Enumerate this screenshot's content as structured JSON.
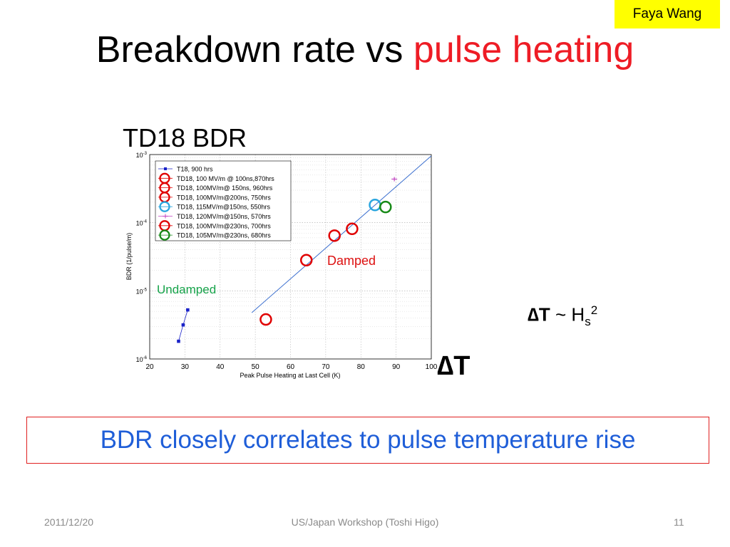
{
  "header": {
    "author": "Faya Wang",
    "title_prefix": "Breakdown rate vs ",
    "title_highlight": "pulse heating"
  },
  "chart_heading": "TD18 BDR",
  "equation": {
    "lhs": "∆T",
    "op": " ~ H",
    "sub": "s",
    "sup": "2"
  },
  "delta_t_label": "∆T",
  "conclusion": "BDR closely correlates to pulse temperature rise",
  "footer": {
    "date": "2011/12/20",
    "center": "US/Japan Workshop (Toshi Higo)",
    "page": "11"
  },
  "chart_data": {
    "type": "scatter",
    "xlabel": "Peak Pulse Heating at Last Cell (K)",
    "ylabel": "BDR (1/pulse/m)",
    "xlim": [
      20,
      100
    ],
    "ylim_log10": [
      -6,
      -3
    ],
    "yscale": "log",
    "grid": true,
    "legend_position": "top-left",
    "x_ticks": [
      "20",
      "30",
      "40",
      "50",
      "60",
      "70",
      "80",
      "90",
      "100"
    ],
    "y_ticks": [
      {
        "exp": -6,
        "base": "10",
        "power": "-6"
      },
      {
        "exp": -5,
        "base": "10",
        "power": "-5"
      },
      {
        "exp": -4,
        "base": "10",
        "power": "-4"
      },
      {
        "exp": -3,
        "base": "10",
        "power": "-3"
      }
    ],
    "annotations": [
      {
        "text": "Undamped",
        "color": "#16a34a"
      },
      {
        "text": "Damped",
        "color": "#dd1111"
      }
    ],
    "fit_line": {
      "x": [
        49,
        100
      ],
      "log10_y": [
        -5.32,
        -3.02
      ],
      "color": "#3b6fcf"
    },
    "series": [
      {
        "name": "T18, 900 hrs",
        "color": "#1a22c8",
        "marker": "square",
        "line": true,
        "points": [
          [
            28.2,
            -5.74
          ],
          [
            29.5,
            -5.5
          ],
          [
            30.8,
            -5.28
          ]
        ]
      },
      {
        "name": "TD18, 100 MV/m @ 100ns,870hrs",
        "color": "#e00000",
        "marker": "circle",
        "points": [
          [
            53,
            -5.42
          ]
        ]
      },
      {
        "name": "TD18, 100MV/m@ 150ns, 960hrs",
        "color": "#e00000",
        "marker": "circle",
        "points": [
          [
            64.5,
            -4.55
          ]
        ]
      },
      {
        "name": "TD18, 100MV/m@200ns, 750hrs",
        "color": "#e00000",
        "marker": "circle",
        "points": [
          [
            72.5,
            -4.19
          ]
        ]
      },
      {
        "name": "TD18, 115MV/m@150ns, 550hrs",
        "color": "#2aa6df",
        "marker": "circle",
        "points": [
          [
            84,
            -3.74
          ]
        ]
      },
      {
        "name": "TD18, 120MV/m@150ns, 570hrs",
        "color": "#c040c0",
        "marker": "small",
        "points": [
          [
            89.5,
            -3.36
          ]
        ]
      },
      {
        "name": "TD18, 100MV/m@230ns, 700hrs",
        "color": "#e00000",
        "marker": "circle",
        "points": [
          [
            77.5,
            -4.09
          ]
        ]
      },
      {
        "name": "TD18, 105MV/m@230ns, 680hrs",
        "color": "#188a18",
        "marker": "circle",
        "points": [
          [
            87,
            -3.77
          ]
        ]
      }
    ]
  }
}
